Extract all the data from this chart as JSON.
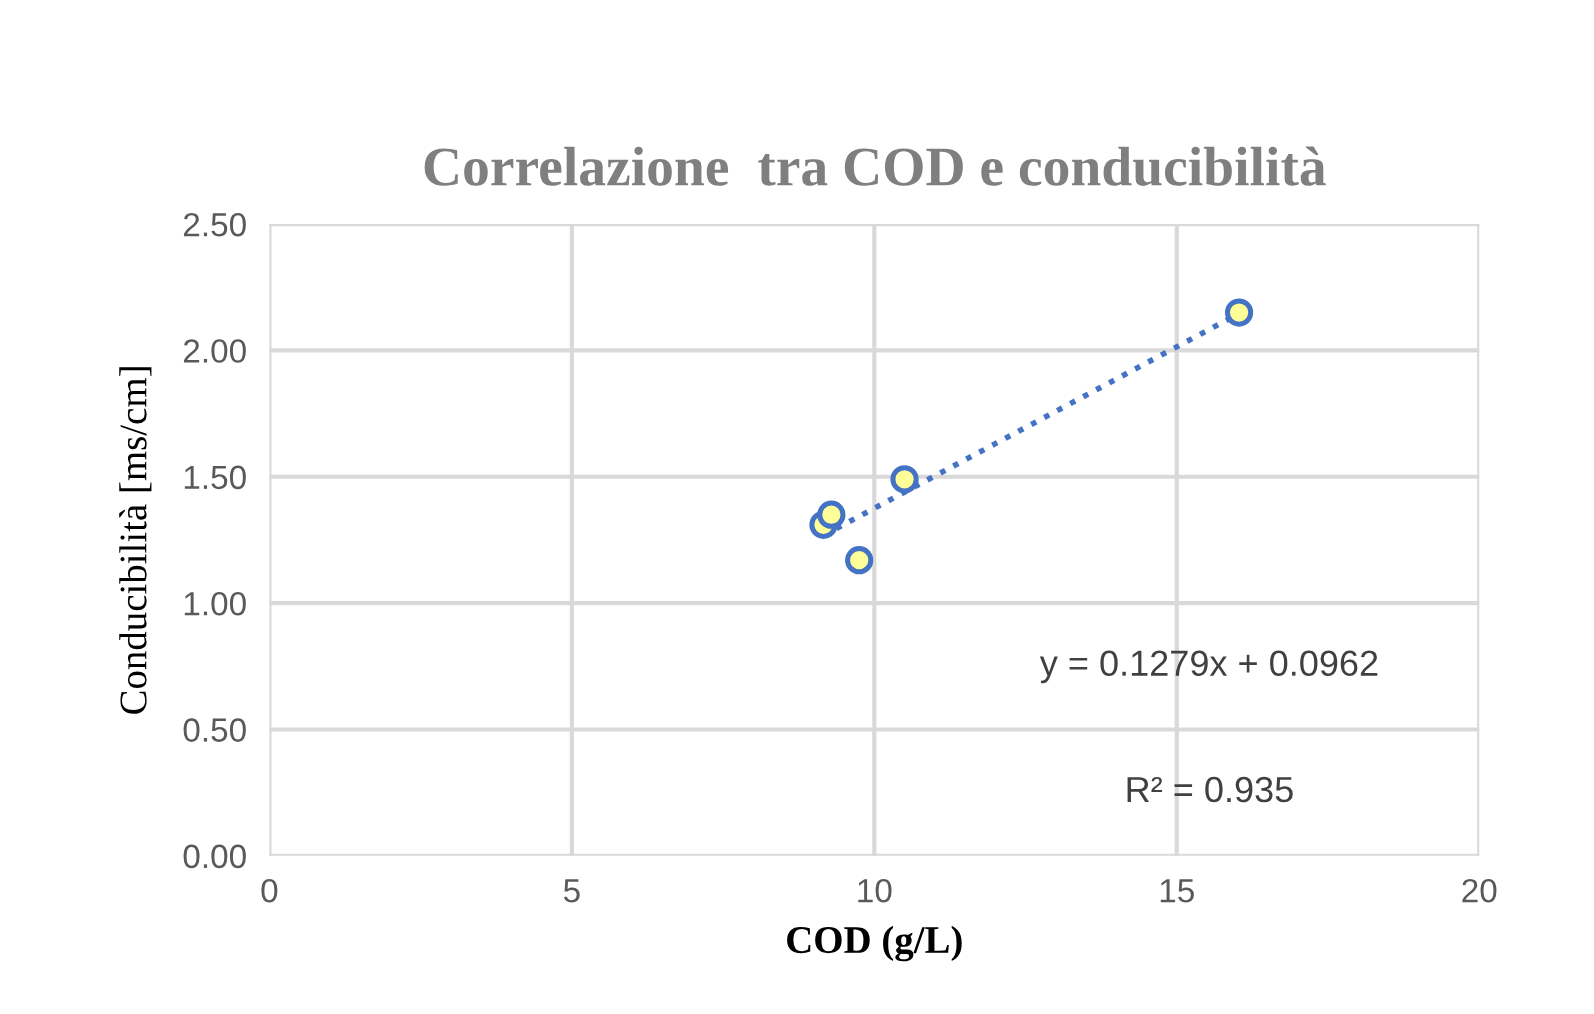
{
  "chart_data": {
    "type": "scatter",
    "title": "Correlazione  tra COD e conducibilità",
    "xlabel": "COD (g/L)",
    "ylabel": "Conducibilità [ms/cm]",
    "x": [
      9.16,
      9.29,
      9.75,
      10.5,
      16.03
    ],
    "series": [
      {
        "color": "#ffff99",
        "marker": "circle",
        "values": [
          1.31,
          1.35,
          1.17,
          1.49,
          2.15
        ]
      },
      {
        "type": "line",
        "color": "#4472c4",
        "line_style": "dotted",
        "x": [
          9.16,
          16.03
        ],
        "values": [
          1.268,
          2.146
        ]
      }
    ],
    "annotations": [
      "y = 0.1279x + 0.0962",
      "R² = 0.935"
    ],
    "xlim": [
      0,
      20
    ],
    "xticks": [
      0,
      5,
      10,
      15,
      20
    ],
    "ylim": [
      0,
      2.5
    ],
    "yticks": [
      {
        "value": 0,
        "label": "0.00"
      },
      {
        "value": 0.5,
        "label": "0.50"
      },
      {
        "value": 1,
        "label": "1.00"
      },
      {
        "value": 1.5,
        "label": "1.50"
      },
      {
        "value": 2,
        "label": "2.00"
      },
      {
        "value": 2.5,
        "label": "2.50"
      }
    ],
    "grid": true,
    "legend": false
  }
}
